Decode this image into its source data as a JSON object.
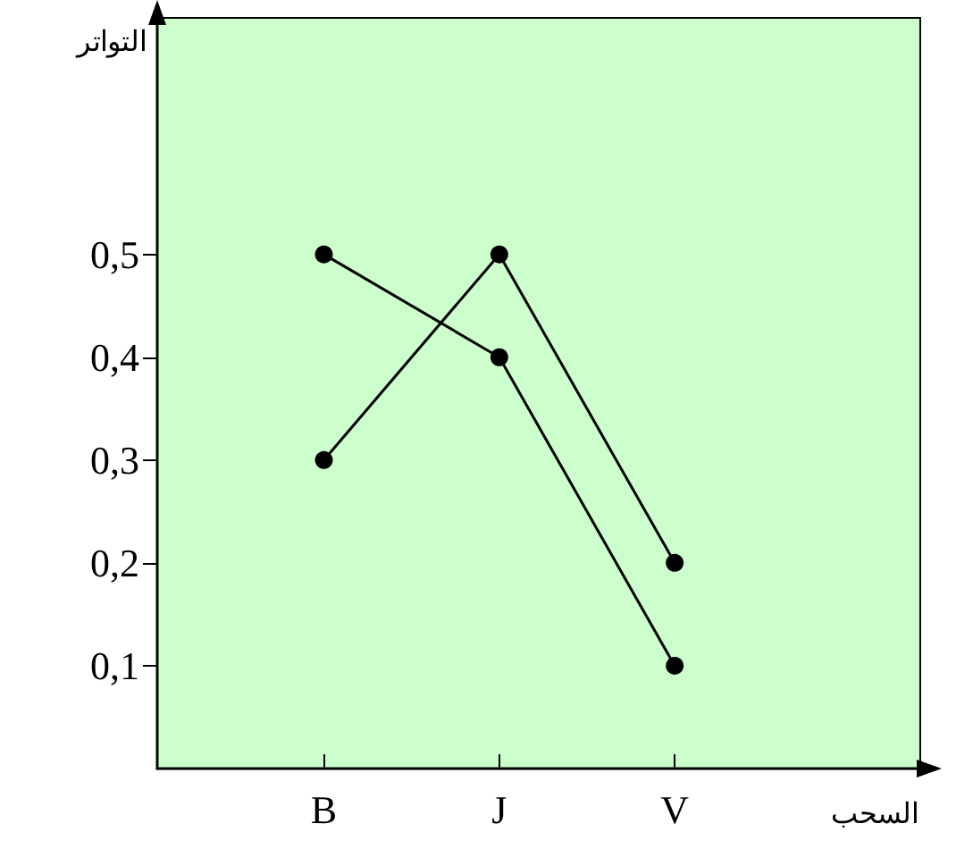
{
  "chart_data": {
    "type": "line",
    "xlabel": "السحب",
    "ylabel": "التواتر",
    "categories": [
      "B",
      "J",
      "V"
    ],
    "series": [
      {
        "color": "#000000",
        "values": [
          0.5,
          0.4,
          0.1
        ]
      },
      {
        "color": "#000000",
        "values": [
          0.3,
          0.5,
          0.2
        ]
      }
    ],
    "ylim": [
      0,
      0.73
    ],
    "yticks": [
      {
        "value": 0.1,
        "label": "0,1"
      },
      {
        "value": 0.2,
        "label": "0,2"
      },
      {
        "value": 0.3,
        "label": "0,3"
      },
      {
        "value": 0.4,
        "label": "0,4"
      },
      {
        "value": 0.5,
        "label": "0,5"
      }
    ],
    "grid": false,
    "marker": "circle",
    "line_style": "solid"
  }
}
